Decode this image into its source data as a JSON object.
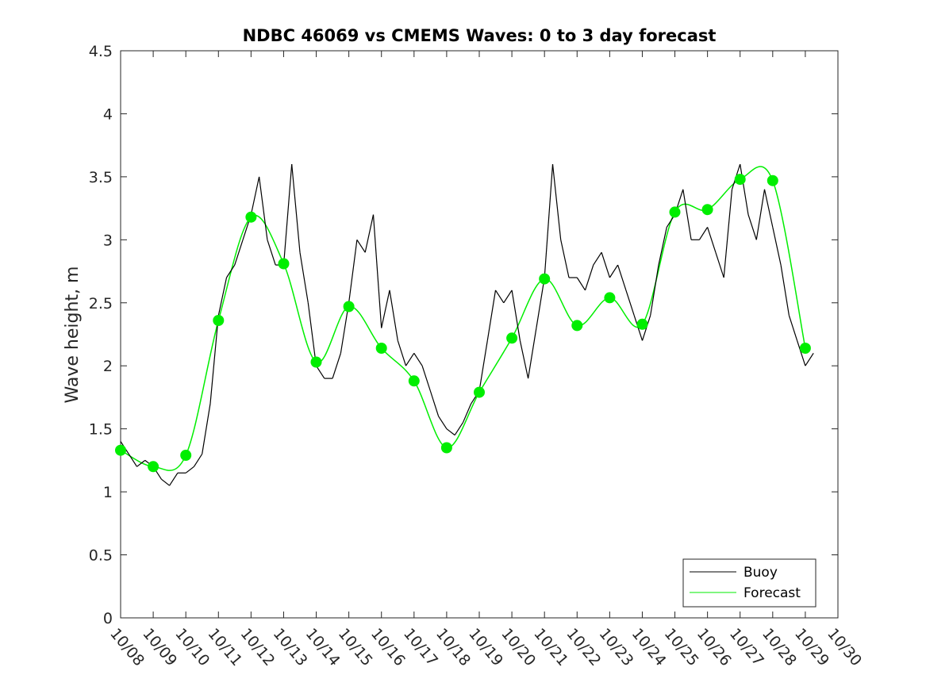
{
  "chart_data": {
    "type": "line",
    "title": "NDBC 46069 vs CMEMS Waves: 0 to 3 day forecast",
    "xlabel": "",
    "ylabel": "Wave height, m",
    "xlim": [
      "10/08",
      "10/30"
    ],
    "ylim": [
      0,
      4.5
    ],
    "x_ticks": [
      "10/08",
      "10/09",
      "10/10",
      "10/11",
      "10/12",
      "10/13",
      "10/14",
      "10/15",
      "10/16",
      "10/17",
      "10/18",
      "10/19",
      "10/20",
      "10/21",
      "10/22",
      "10/23",
      "10/24",
      "10/25",
      "10/26",
      "10/27",
      "10/28",
      "10/29",
      "10/30"
    ],
    "y_ticks": [
      "0",
      "0.5",
      "1",
      "1.5",
      "2",
      "2.5",
      "3",
      "3.5",
      "4",
      "4.5"
    ],
    "grid": false,
    "legend": {
      "placement": "bottom-right",
      "entries": [
        {
          "name": "Buoy",
          "color": "#000000"
        },
        {
          "name": "Forecast",
          "color": "#00ee00"
        }
      ]
    },
    "series": [
      {
        "name": "Buoy",
        "color": "#000000",
        "x": [
          "10/08 00:00",
          "10/08 06:00",
          "10/08 12:00",
          "10/08 18:00",
          "10/09 00:00",
          "10/09 06:00",
          "10/09 12:00",
          "10/09 18:00",
          "10/10 00:00",
          "10/10 06:00",
          "10/10 12:00",
          "10/10 18:00",
          "10/11 00:00",
          "10/11 06:00",
          "10/11 12:00",
          "10/11 18:00",
          "10/12 00:00",
          "10/12 06:00",
          "10/12 12:00",
          "10/12 18:00",
          "10/13 00:00",
          "10/13 06:00",
          "10/13 12:00",
          "10/13 18:00",
          "10/14 00:00",
          "10/14 06:00",
          "10/14 12:00",
          "10/14 18:00",
          "10/15 00:00",
          "10/15 06:00",
          "10/15 12:00",
          "10/15 18:00",
          "10/16 00:00",
          "10/16 06:00",
          "10/16 12:00",
          "10/16 18:00",
          "10/17 00:00",
          "10/17 06:00",
          "10/17 12:00",
          "10/17 18:00",
          "10/18 00:00",
          "10/18 06:00",
          "10/18 12:00",
          "10/18 18:00",
          "10/19 00:00",
          "10/19 06:00",
          "10/19 12:00",
          "10/19 18:00",
          "10/20 00:00",
          "10/20 06:00",
          "10/20 12:00",
          "10/20 18:00",
          "10/21 00:00",
          "10/21 06:00",
          "10/21 12:00",
          "10/21 18:00",
          "10/22 00:00",
          "10/22 06:00",
          "10/22 12:00",
          "10/22 18:00",
          "10/23 00:00",
          "10/23 06:00",
          "10/23 12:00",
          "10/23 18:00",
          "10/24 00:00",
          "10/24 06:00",
          "10/24 12:00",
          "10/24 18:00",
          "10/25 00:00",
          "10/25 06:00",
          "10/25 12:00",
          "10/25 18:00",
          "10/26 00:00",
          "10/26 06:00",
          "10/26 12:00",
          "10/26 18:00",
          "10/27 00:00",
          "10/27 06:00",
          "10/27 12:00",
          "10/27 18:00",
          "10/28 00:00",
          "10/28 06:00",
          "10/28 12:00",
          "10/28 18:00",
          "10/29 00:00",
          "10/29 06:00"
        ],
        "values": [
          1.4,
          1.3,
          1.2,
          1.25,
          1.2,
          1.1,
          1.05,
          1.15,
          1.15,
          1.2,
          1.3,
          1.7,
          2.4,
          2.7,
          2.8,
          3.0,
          3.2,
          3.5,
          3.0,
          2.8,
          2.8,
          3.6,
          2.9,
          2.5,
          2.0,
          1.9,
          1.9,
          2.1,
          2.5,
          3.0,
          2.9,
          3.2,
          2.3,
          2.6,
          2.2,
          2.0,
          2.1,
          2.0,
          1.8,
          1.6,
          1.5,
          1.45,
          1.55,
          1.7,
          1.8,
          2.2,
          2.6,
          2.5,
          2.6,
          2.2,
          1.9,
          2.3,
          2.7,
          3.6,
          3.0,
          2.7,
          2.7,
          2.6,
          2.8,
          2.9,
          2.7,
          2.8,
          2.6,
          2.4,
          2.2,
          2.4,
          2.8,
          3.1,
          3.2,
          3.4,
          3.0,
          3.0,
          3.1,
          2.9,
          2.7,
          3.4,
          3.6,
          3.2,
          3.0,
          3.4,
          3.1,
          2.8,
          2.4,
          2.2,
          2.0,
          2.1
        ]
      },
      {
        "name": "Forecast",
        "color": "#00ee00",
        "x": [
          "10/08",
          "10/09",
          "10/10",
          "10/11",
          "10/12",
          "10/13",
          "10/14",
          "10/15",
          "10/16",
          "10/17",
          "10/18",
          "10/19",
          "10/20",
          "10/21",
          "10/22",
          "10/23",
          "10/24",
          "10/25",
          "10/26",
          "10/27",
          "10/28",
          "10/29"
        ],
        "values": [
          1.33,
          1.2,
          1.29,
          2.36,
          3.18,
          2.81,
          2.03,
          2.47,
          2.14,
          1.88,
          1.35,
          1.79,
          2.22,
          2.69,
          2.32,
          2.54,
          2.33,
          3.22,
          3.24,
          3.48,
          3.47,
          2.14
        ]
      }
    ]
  }
}
